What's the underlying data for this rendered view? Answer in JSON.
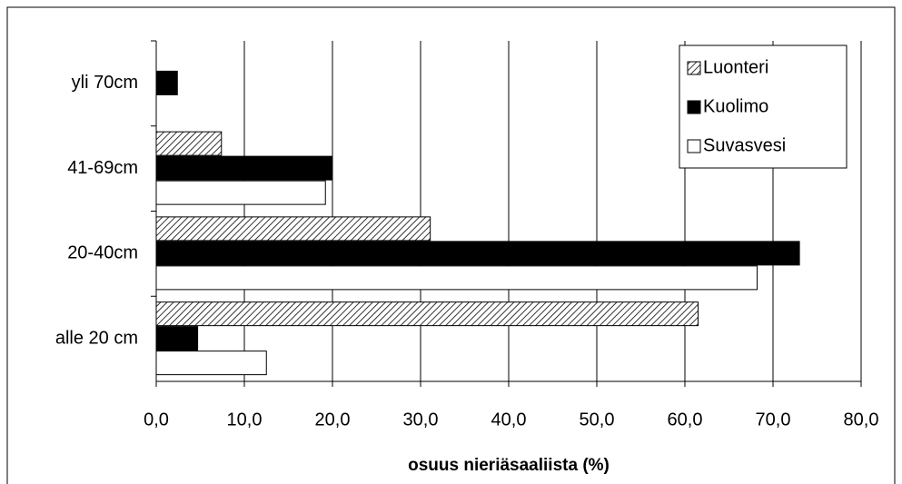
{
  "chart_data": {
    "type": "barh",
    "x_label": "osuus nieriäsaaliista (%)",
    "categories": [
      "alle 20 cm",
      "20-40cm",
      "41-69cm",
      "yli 70cm"
    ],
    "series": [
      {
        "name": "Luonteri",
        "color": "#000000",
        "pattern": "hatch",
        "values": [
          61.5,
          31.1,
          7.4,
          null
        ]
      },
      {
        "name": "Kuolimo",
        "color": "#000000",
        "pattern": "solid",
        "values": [
          4.7,
          73.0,
          20.0,
          2.4
        ]
      },
      {
        "name": "Suvasvesi",
        "color": "#ffffff",
        "pattern": "solid",
        "values": [
          12.5,
          68.2,
          19.2,
          null
        ]
      }
    ],
    "xlim": [
      0,
      80
    ],
    "xticks": [
      {
        "value": 0,
        "label": "0,0"
      },
      {
        "value": 10,
        "label": "10,0"
      },
      {
        "value": 20,
        "label": "20,0"
      },
      {
        "value": 30,
        "label": "30,0"
      },
      {
        "value": 40,
        "label": "40,0"
      },
      {
        "value": 50,
        "label": "50,0"
      },
      {
        "value": 60,
        "label": "60,0"
      },
      {
        "value": 70,
        "label": "70,0"
      },
      {
        "value": 80,
        "label": "80,0"
      }
    ],
    "grid": true,
    "legend": "upper right"
  }
}
